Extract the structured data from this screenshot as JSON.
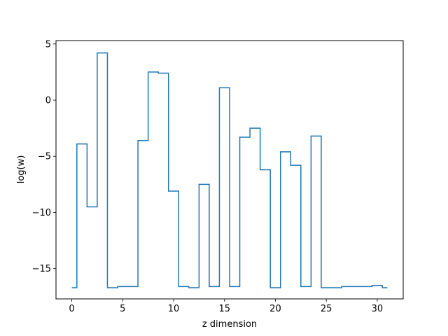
{
  "chart_data": {
    "type": "line",
    "drawstyle": "steps-mid",
    "title": "",
    "xlabel": "z dimension",
    "ylabel": "log(w)",
    "xlim": [
      -1.55,
      32.55
    ],
    "ylim": [
      -17.7,
      5.3
    ],
    "xticks": [
      0,
      5,
      10,
      15,
      20,
      25,
      30
    ],
    "yticks": [
      -15,
      -10,
      -5,
      0,
      5
    ],
    "ytick_labels": [
      "−15",
      "−10",
      "−5",
      "0",
      "5"
    ],
    "grid": false,
    "colors": {
      "line": "#1f77b4",
      "axes": "#000000"
    },
    "series": [
      {
        "x": [
          0,
          1,
          2,
          3,
          4,
          5,
          6,
          7,
          8,
          9,
          10,
          11,
          12,
          13,
          14,
          15,
          16,
          17,
          18,
          19,
          20,
          21,
          22,
          23,
          24,
          25,
          26,
          27,
          28,
          29,
          30,
          31
        ],
        "y": [
          -16.7,
          -3.9,
          -9.5,
          4.2,
          -16.7,
          -16.6,
          -16.6,
          -3.6,
          2.5,
          2.4,
          -8.1,
          -16.6,
          -16.7,
          -7.5,
          -16.6,
          1.1,
          -16.6,
          -3.3,
          -2.5,
          -6.2,
          -16.7,
          -4.6,
          -5.8,
          -16.6,
          -3.2,
          -16.7,
          -16.7,
          -16.6,
          -16.6,
          -16.6,
          -16.5,
          -16.7
        ]
      }
    ]
  }
}
